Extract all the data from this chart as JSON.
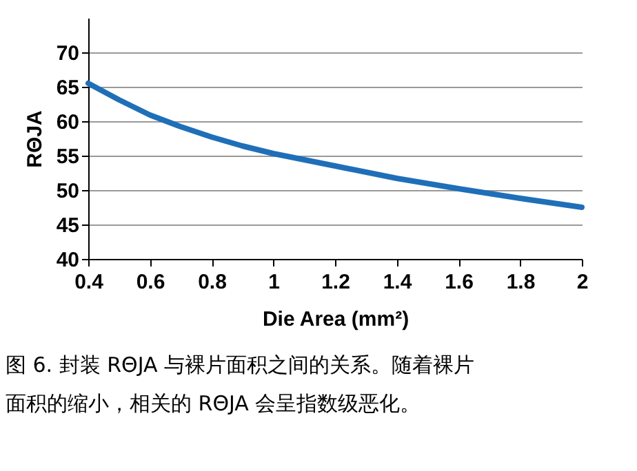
{
  "chart_data": {
    "type": "line",
    "xlabel": "Die Area (mm²)",
    "ylabel": "RΘJA",
    "x": [
      0.4,
      0.5,
      0.6,
      0.7,
      0.8,
      0.9,
      1.0,
      1.2,
      1.4,
      1.6,
      1.8,
      2.0
    ],
    "series": [
      {
        "color": "#1f6fb8",
        "values": [
          65.5,
          63.1,
          60.9,
          59.2,
          57.7,
          56.4,
          55.3,
          53.5,
          51.7,
          50.2,
          48.8,
          47.5
        ]
      }
    ],
    "xlim": [
      0.4,
      2
    ],
    "xticks": [
      0.4,
      0.6,
      0.8,
      1,
      1.2,
      1.4,
      1.6,
      1.8,
      2
    ],
    "ylim": [
      40,
      75
    ],
    "yticks": [
      40,
      45,
      50,
      55,
      60,
      65,
      70
    ],
    "grid": "y",
    "marker": "none",
    "line_style": "solid",
    "annotations": [
      "图 6. 封装 RΘJA 与裸片面积之间的关系。随着裸片面积的缩小，相关的 RΘJA 会呈指数级恶化。"
    ]
  }
}
